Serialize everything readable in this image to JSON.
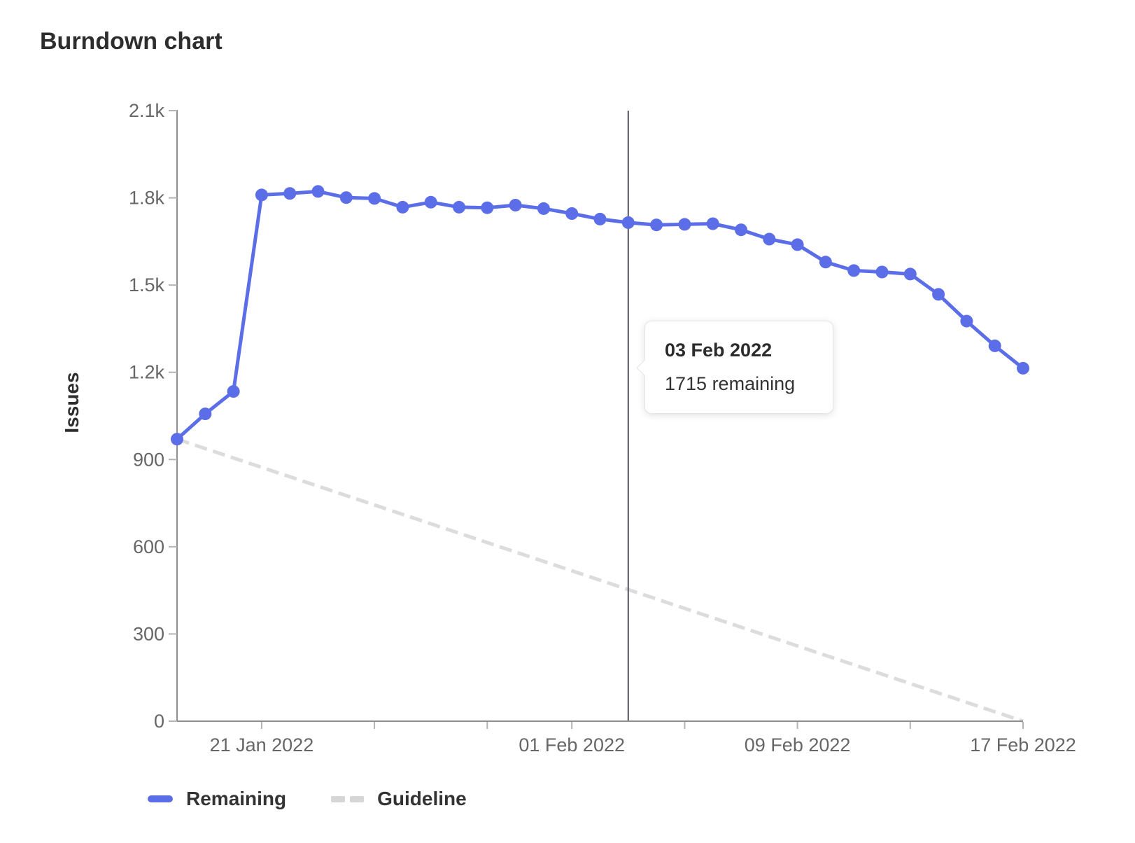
{
  "header": {
    "title": "Burndown chart"
  },
  "chart_data": {
    "type": "line",
    "title": "Burndown chart",
    "xlabel": "",
    "ylabel": "Issues",
    "ylim": [
      0,
      2100
    ],
    "grid": false,
    "legend_position": "bottom-left",
    "y_ticks": [
      {
        "value": 2100,
        "label": "2.1k"
      },
      {
        "value": 1800,
        "label": "1.8k"
      },
      {
        "value": 1500,
        "label": "1.5k"
      },
      {
        "value": 1200,
        "label": "1.2k"
      },
      {
        "value": 900,
        "label": "900"
      },
      {
        "value": 600,
        "label": "600"
      },
      {
        "value": 300,
        "label": "300"
      },
      {
        "value": 0,
        "label": "0"
      }
    ],
    "x": [
      "18 Jan 2022",
      "19 Jan 2022",
      "20 Jan 2022",
      "21 Jan 2022",
      "22 Jan 2022",
      "23 Jan 2022",
      "24 Jan 2022",
      "25 Jan 2022",
      "26 Jan 2022",
      "27 Jan 2022",
      "28 Jan 2022",
      "29 Jan 2022",
      "30 Jan 2022",
      "31 Jan 2022",
      "01 Feb 2022",
      "02 Feb 2022",
      "03 Feb 2022",
      "04 Feb 2022",
      "05 Feb 2022",
      "06 Feb 2022",
      "07 Feb 2022",
      "08 Feb 2022",
      "09 Feb 2022",
      "10 Feb 2022",
      "11 Feb 2022",
      "12 Feb 2022",
      "13 Feb 2022",
      "14 Feb 2022",
      "15 Feb 2022",
      "16 Feb 2022",
      "17 Feb 2022"
    ],
    "x_ticks": [
      {
        "index": 3,
        "label": "21 Jan 2022"
      },
      {
        "index": 7,
        "label": ""
      },
      {
        "index": 11,
        "label": ""
      },
      {
        "index": 14,
        "label": "01 Feb 2022"
      },
      {
        "index": 18,
        "label": ""
      },
      {
        "index": 22,
        "label": "09 Feb 2022"
      },
      {
        "index": 26,
        "label": ""
      },
      {
        "index": 30,
        "label": "17 Feb 2022"
      }
    ],
    "series": [
      {
        "name": "Remaining",
        "style": "solid",
        "color": "#5b6ee8",
        "values": [
          970,
          1057,
          1134,
          1810,
          1815,
          1822,
          1801,
          1798,
          1768,
          1785,
          1768,
          1766,
          1775,
          1763,
          1746,
          1727,
          1715,
          1707,
          1709,
          1711,
          1690,
          1658,
          1639,
          1579,
          1550,
          1545,
          1538,
          1468,
          1376,
          1291,
          1214
        ]
      },
      {
        "name": "Guideline",
        "style": "dashed",
        "color": "#dcdcdc",
        "points": [
          {
            "x_index": 0,
            "value": 970
          },
          {
            "x_index": 30,
            "value": 0
          }
        ]
      }
    ],
    "today_marker": {
      "x_index": 16,
      "date": "03 Feb 2022",
      "color": "#54565b"
    },
    "colors": {
      "axis": "#8f8f8f",
      "minor_tick": "#b3b3b3",
      "tick_label": "#666666"
    }
  },
  "tooltip": {
    "title": "03 Feb 2022",
    "body": "1715 remaining"
  },
  "legend": {
    "items": [
      {
        "label": "Remaining",
        "color": "#5b6ee8",
        "style": "solid"
      },
      {
        "label": "Guideline",
        "color": "#d6d6d6",
        "style": "dashed"
      }
    ]
  }
}
